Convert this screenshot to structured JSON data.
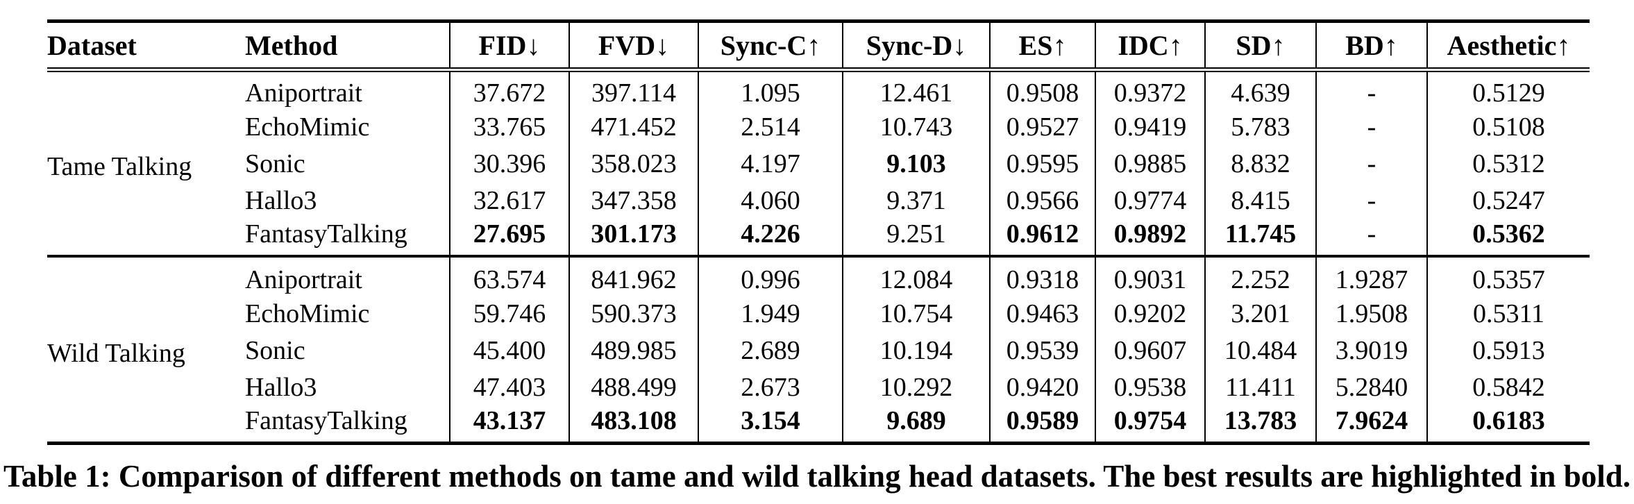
{
  "colors": {
    "text": "#000000",
    "background": "#ffffff",
    "rule": "#000000"
  },
  "table": {
    "caption": "Table 1: Comparison of different methods on tame and wild talking head datasets. The best results are highlighted in bold.",
    "columns": [
      "Dataset",
      "Method",
      "FID↓",
      "FVD↓",
      "Sync-C↑",
      "Sync-D↓",
      "ES↑",
      "IDC↑",
      "SD↑",
      "BD↑",
      "Aesthetic↑"
    ],
    "groups": [
      {
        "dataset": "Tame Talking",
        "rows": [
          {
            "method": "Aniportrait",
            "values": [
              "37.672",
              "397.114",
              "1.095",
              "12.461",
              "0.9508",
              "0.9372",
              "4.639",
              "-",
              "0.5129"
            ],
            "bold": [
              false,
              false,
              false,
              false,
              false,
              false,
              false,
              false,
              false
            ]
          },
          {
            "method": "EchoMimic",
            "values": [
              "33.765",
              "471.452",
              "2.514",
              "10.743",
              "0.9527",
              "0.9419",
              "5.783",
              "-",
              "0.5108"
            ],
            "bold": [
              false,
              false,
              false,
              false,
              false,
              false,
              false,
              false,
              false
            ]
          },
          {
            "method": "Sonic",
            "values": [
              "30.396",
              "358.023",
              "4.197",
              "9.103",
              "0.9595",
              "0.9885",
              "8.832",
              "-",
              "0.5312"
            ],
            "bold": [
              false,
              false,
              false,
              true,
              false,
              false,
              false,
              false,
              false
            ]
          },
          {
            "method": "Hallo3",
            "values": [
              "32.617",
              "347.358",
              "4.060",
              "9.371",
              "0.9566",
              "0.9774",
              "8.415",
              "-",
              "0.5247"
            ],
            "bold": [
              false,
              false,
              false,
              false,
              false,
              false,
              false,
              false,
              false
            ]
          },
          {
            "method": "FantasyTalking",
            "values": [
              "27.695",
              "301.173",
              "4.226",
              "9.251",
              "0.9612",
              "0.9892",
              "11.745",
              "-",
              "0.5362"
            ],
            "bold": [
              true,
              true,
              true,
              false,
              true,
              true,
              true,
              false,
              true
            ]
          }
        ]
      },
      {
        "dataset": "Wild Talking",
        "rows": [
          {
            "method": "Aniportrait",
            "values": [
              "63.574",
              "841.962",
              "0.996",
              "12.084",
              "0.9318",
              "0.9031",
              "2.252",
              "1.9287",
              "0.5357"
            ],
            "bold": [
              false,
              false,
              false,
              false,
              false,
              false,
              false,
              false,
              false
            ]
          },
          {
            "method": "EchoMimic",
            "values": [
              "59.746",
              "590.373",
              "1.949",
              "10.754",
              "0.9463",
              "0.9202",
              "3.201",
              "1.9508",
              "0.5311"
            ],
            "bold": [
              false,
              false,
              false,
              false,
              false,
              false,
              false,
              false,
              false
            ]
          },
          {
            "method": "Sonic",
            "values": [
              "45.400",
              "489.985",
              "2.689",
              "10.194",
              "0.9539",
              "0.9607",
              "10.484",
              "3.9019",
              "0.5913"
            ],
            "bold": [
              false,
              false,
              false,
              false,
              false,
              false,
              false,
              false,
              false
            ]
          },
          {
            "method": "Hallo3",
            "values": [
              "47.403",
              "488.499",
              "2.673",
              "10.292",
              "0.9420",
              "0.9538",
              "11.411",
              "5.2840",
              "0.5842"
            ],
            "bold": [
              false,
              false,
              false,
              false,
              false,
              false,
              false,
              false,
              false
            ]
          },
          {
            "method": "FantasyTalking",
            "values": [
              "43.137",
              "483.108",
              "3.154",
              "9.689",
              "0.9589",
              "0.9754",
              "13.783",
              "7.9624",
              "0.6183"
            ],
            "bold": [
              true,
              true,
              true,
              true,
              true,
              true,
              true,
              true,
              true
            ]
          }
        ]
      }
    ]
  }
}
